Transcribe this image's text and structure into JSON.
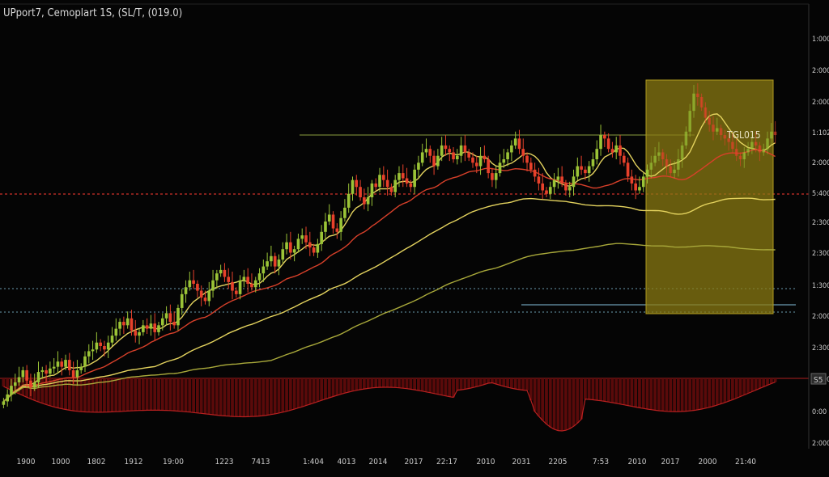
{
  "header": {
    "title": "UPport7, Cemoplart 1S, (SL/T, (019.0)"
  },
  "colors": {
    "background": "#050505",
    "up_candle": "#9bc437",
    "down_candle": "#e8412b",
    "ma_yellow": "#e4d35e",
    "ma_red": "#d8402a",
    "ma_olive": "#a8a83a",
    "support_red": "#d0302a",
    "level_blue": "#6a9ab0",
    "zone_fill": "#8a7a12",
    "osc_fill": "#5a0a0a",
    "axis_text": "#cccccc"
  },
  "chart_data": {
    "type": "candlestick",
    "title": "UPport7, Cemoplart 1S, (SL/T, (019.0)",
    "x_tick_labels": [
      "1900",
      "1000",
      "1802",
      "1912",
      "19:00",
      "1223",
      "7413",
      "1:404",
      "4013",
      "2014",
      "2017",
      "22:17",
      "2010",
      "2031",
      "2205",
      "7:53",
      "2010",
      "2017",
      "2000",
      "21:40"
    ],
    "y_tick_labels": [
      "1:000",
      "2:000",
      "2:000",
      "1:102",
      "2:000",
      "5:400",
      "2:300",
      "2:300",
      "1:300",
      "2:000",
      "2:300",
      "1:000",
      "0:00",
      "2:000"
    ],
    "y_range": [
      0,
      100
    ],
    "candles": {
      "closes": [
        4,
        8,
        13,
        15,
        18,
        22,
        16,
        12,
        15,
        21,
        22,
        20,
        23,
        24,
        27,
        24,
        28,
        22,
        18,
        22,
        24,
        30,
        33,
        34,
        38,
        36,
        34,
        38,
        42,
        46,
        50,
        48,
        52,
        45,
        42,
        44,
        48,
        46,
        49,
        44,
        48,
        52,
        55,
        50,
        48,
        58,
        66,
        70,
        74,
        72,
        68,
        64,
        62,
        68,
        74,
        78,
        80,
        76,
        73,
        68,
        66,
        74,
        76,
        72,
        70,
        74,
        78,
        82,
        85,
        88,
        82,
        86,
        92,
        96,
        90,
        92,
        98,
        100,
        96,
        93,
        90,
        95,
        102,
        108,
        112,
        104,
        102,
        110,
        116,
        124,
        132,
        128,
        122,
        118,
        122,
        130,
        128,
        135,
        132,
        128,
        125,
        132,
        136,
        133,
        130,
        128,
        138,
        142,
        148,
        150,
        146,
        140,
        146,
        152,
        150,
        148,
        144,
        146,
        152,
        148,
        145,
        142,
        140,
        146,
        144,
        136,
        132,
        136,
        142,
        144,
        148,
        152,
        156,
        150,
        146,
        142,
        138,
        134,
        130,
        126,
        124,
        128,
        132,
        134,
        130,
        126,
        128,
        134,
        140,
        138,
        136,
        140,
        144,
        150,
        158,
        156,
        150,
        148,
        152,
        146,
        142,
        134,
        130,
        126,
        128,
        134,
        138,
        142,
        146,
        148,
        144,
        140,
        136,
        138,
        144,
        152,
        160,
        172,
        182,
        180,
        174,
        168,
        164,
        160,
        162,
        158,
        156,
        154,
        150,
        146,
        144,
        148,
        150,
        154,
        152,
        148,
        150,
        156,
        160,
        158
      ]
    },
    "sampling_note": "",
    "annotations": {
      "zone_label": "TGL015",
      "oscillator_marker": "S5"
    },
    "grid": false,
    "legend": "none"
  }
}
